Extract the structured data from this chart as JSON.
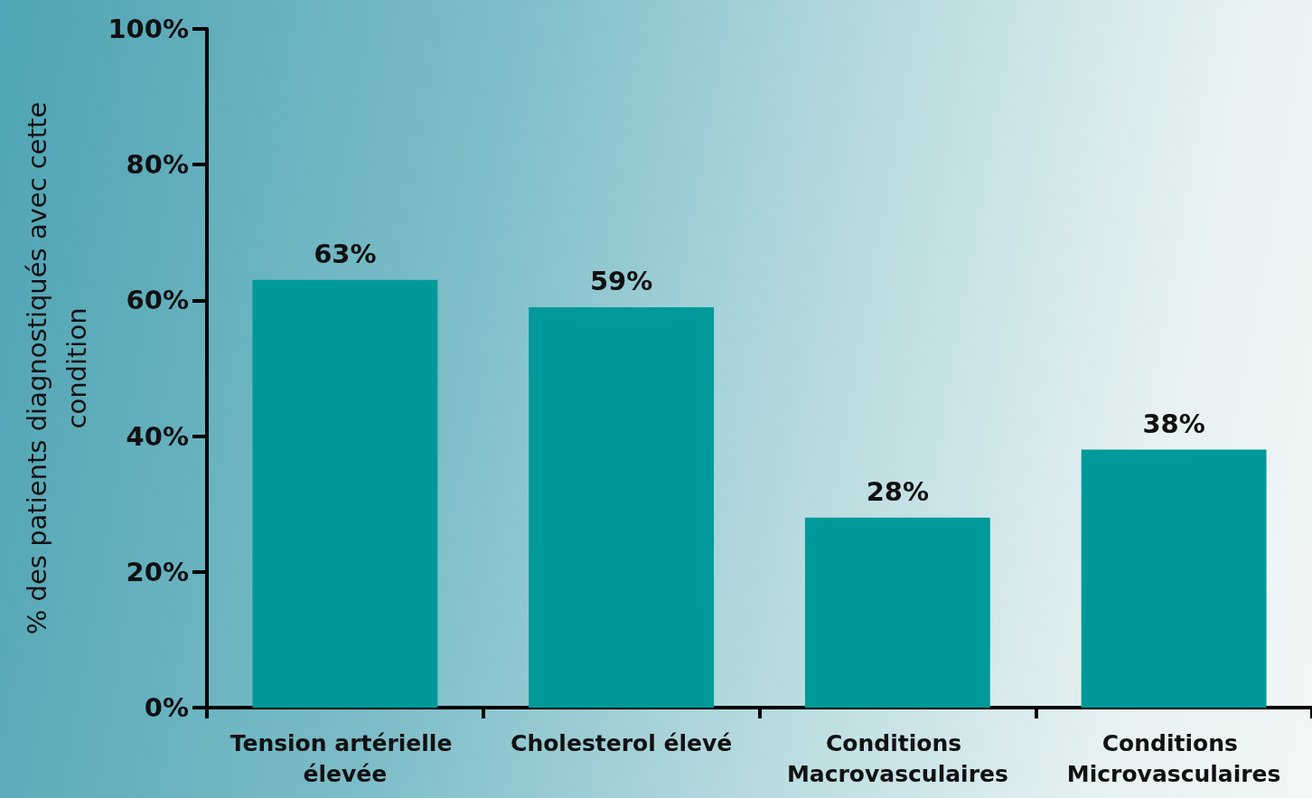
{
  "chart_data": {
    "type": "bar",
    "ylabel": "% des patients diagnostiqués avec cette condition",
    "categories": [
      "Tension artérielle élevée",
      "Cholesterol élevé",
      "Conditions Macrovasculaires",
      "Conditions Microvasculaires"
    ],
    "values": [
      63,
      59,
      28,
      38
    ],
    "color": "#009999",
    "value_labels": [
      "63%",
      "59%",
      "28%",
      "38%"
    ],
    "ylim": [
      0,
      100
    ],
    "yticks": [
      {
        "value": 0,
        "label": "0%"
      },
      {
        "value": 20,
        "label": "20%"
      },
      {
        "value": 40,
        "label": "40%"
      },
      {
        "value": 60,
        "label": "60%"
      },
      {
        "value": 80,
        "label": "80%"
      },
      {
        "value": 100,
        "label": "100%"
      }
    ]
  }
}
